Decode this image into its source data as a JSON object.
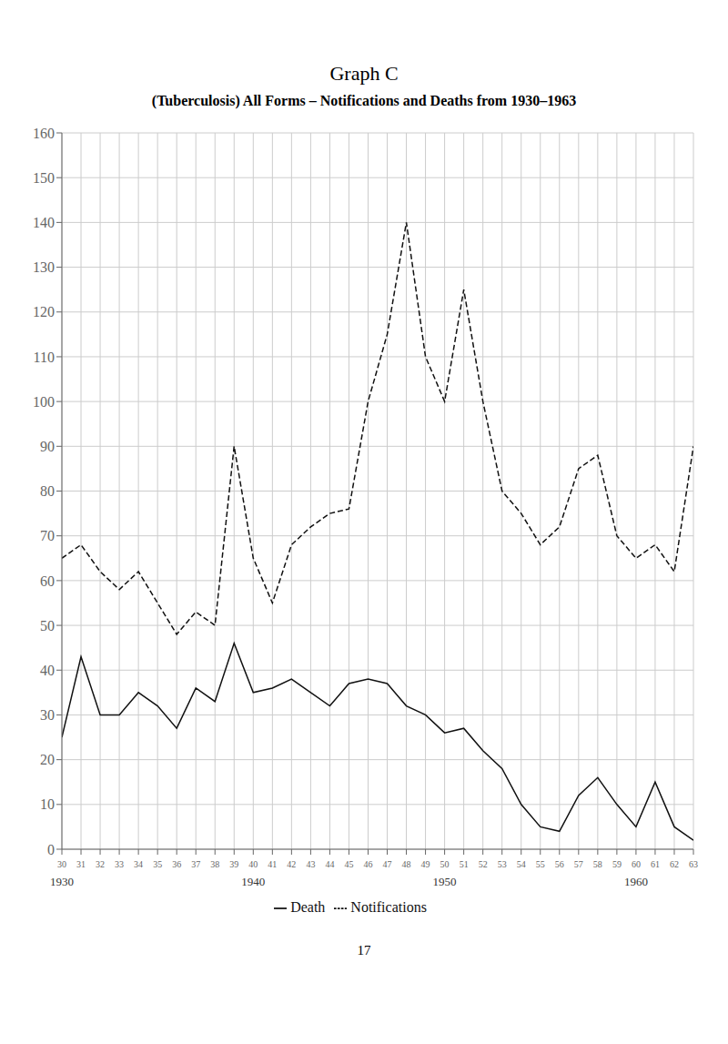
{
  "chart_data": {
    "type": "line",
    "title": "Graph C",
    "subtitle": "(Tuberculosis) All Forms – Notifications and Deaths from 1930–1963",
    "x": [
      1930,
      1931,
      1932,
      1933,
      1934,
      1935,
      1936,
      1937,
      1938,
      1939,
      1940,
      1941,
      1942,
      1943,
      1944,
      1945,
      1946,
      1947,
      1948,
      1949,
      1950,
      1951,
      1952,
      1953,
      1954,
      1955,
      1956,
      1957,
      1958,
      1959,
      1960,
      1961,
      1962,
      1963
    ],
    "series": [
      {
        "name": "Death",
        "color": "#111111",
        "line_style": "solid",
        "values": [
          25,
          43,
          30,
          30,
          35,
          32,
          27,
          36,
          33,
          46,
          35,
          36,
          38,
          35,
          32,
          37,
          38,
          37,
          32,
          30,
          26,
          27,
          22,
          18,
          10,
          5,
          4,
          12,
          16,
          10,
          5,
          15,
          5,
          2
        ]
      },
      {
        "name": "Notifications",
        "color": "#111111",
        "line_style": "dashed",
        "values": [
          65,
          68,
          62,
          58,
          62,
          55,
          48,
          53,
          50,
          90,
          65,
          55,
          68,
          72,
          75,
          76,
          100,
          115,
          140,
          110,
          100,
          125,
          100,
          80,
          75,
          68,
          72,
          85,
          88,
          70,
          65,
          68,
          62,
          90
        ]
      }
    ],
    "xlim": [
      1930,
      1963
    ],
    "xticks": [
      {
        "value": 1930,
        "label": "30"
      },
      {
        "value": 1931,
        "label": "31"
      },
      {
        "value": 1932,
        "label": "32"
      },
      {
        "value": 1933,
        "label": "33"
      },
      {
        "value": 1934,
        "label": "34"
      },
      {
        "value": 1935,
        "label": "35"
      },
      {
        "value": 1936,
        "label": "36"
      },
      {
        "value": 1937,
        "label": "37"
      },
      {
        "value": 1938,
        "label": "38"
      },
      {
        "value": 1939,
        "label": "39"
      },
      {
        "value": 1940,
        "label": "40"
      },
      {
        "value": 1941,
        "label": "41"
      },
      {
        "value": 1942,
        "label": "42"
      },
      {
        "value": 1943,
        "label": "43"
      },
      {
        "value": 1944,
        "label": "44"
      },
      {
        "value": 1945,
        "label": "45"
      },
      {
        "value": 1946,
        "label": "46"
      },
      {
        "value": 1947,
        "label": "47"
      },
      {
        "value": 1948,
        "label": "48"
      },
      {
        "value": 1949,
        "label": "49"
      },
      {
        "value": 1950,
        "label": "50"
      },
      {
        "value": 1951,
        "label": "51"
      },
      {
        "value": 1952,
        "label": "52"
      },
      {
        "value": 1953,
        "label": "53"
      },
      {
        "value": 1954,
        "label": "54"
      },
      {
        "value": 1955,
        "label": "55"
      },
      {
        "value": 1956,
        "label": "56"
      },
      {
        "value": 1957,
        "label": "57"
      },
      {
        "value": 1958,
        "label": "58"
      },
      {
        "value": 1959,
        "label": "59"
      },
      {
        "value": 1960,
        "label": "60"
      },
      {
        "value": 1961,
        "label": "61"
      },
      {
        "value": 1962,
        "label": "62"
      },
      {
        "value": 1963,
        "label": "63"
      }
    ],
    "ylim": [
      0,
      160
    ],
    "yticks": [
      0,
      10,
      20,
      30,
      40,
      50,
      60,
      70,
      80,
      90,
      100,
      110,
      120,
      130,
      140,
      150,
      160
    ],
    "grid": true,
    "legend": "bottom",
    "annotations": [
      {
        "text": "1930",
        "x": 1930
      },
      {
        "text": "1940",
        "x": 1940
      },
      {
        "text": "1950",
        "x": 1950
      },
      {
        "text": "1960",
        "x": 1960
      },
      {
        "text": "17"
      }
    ]
  }
}
